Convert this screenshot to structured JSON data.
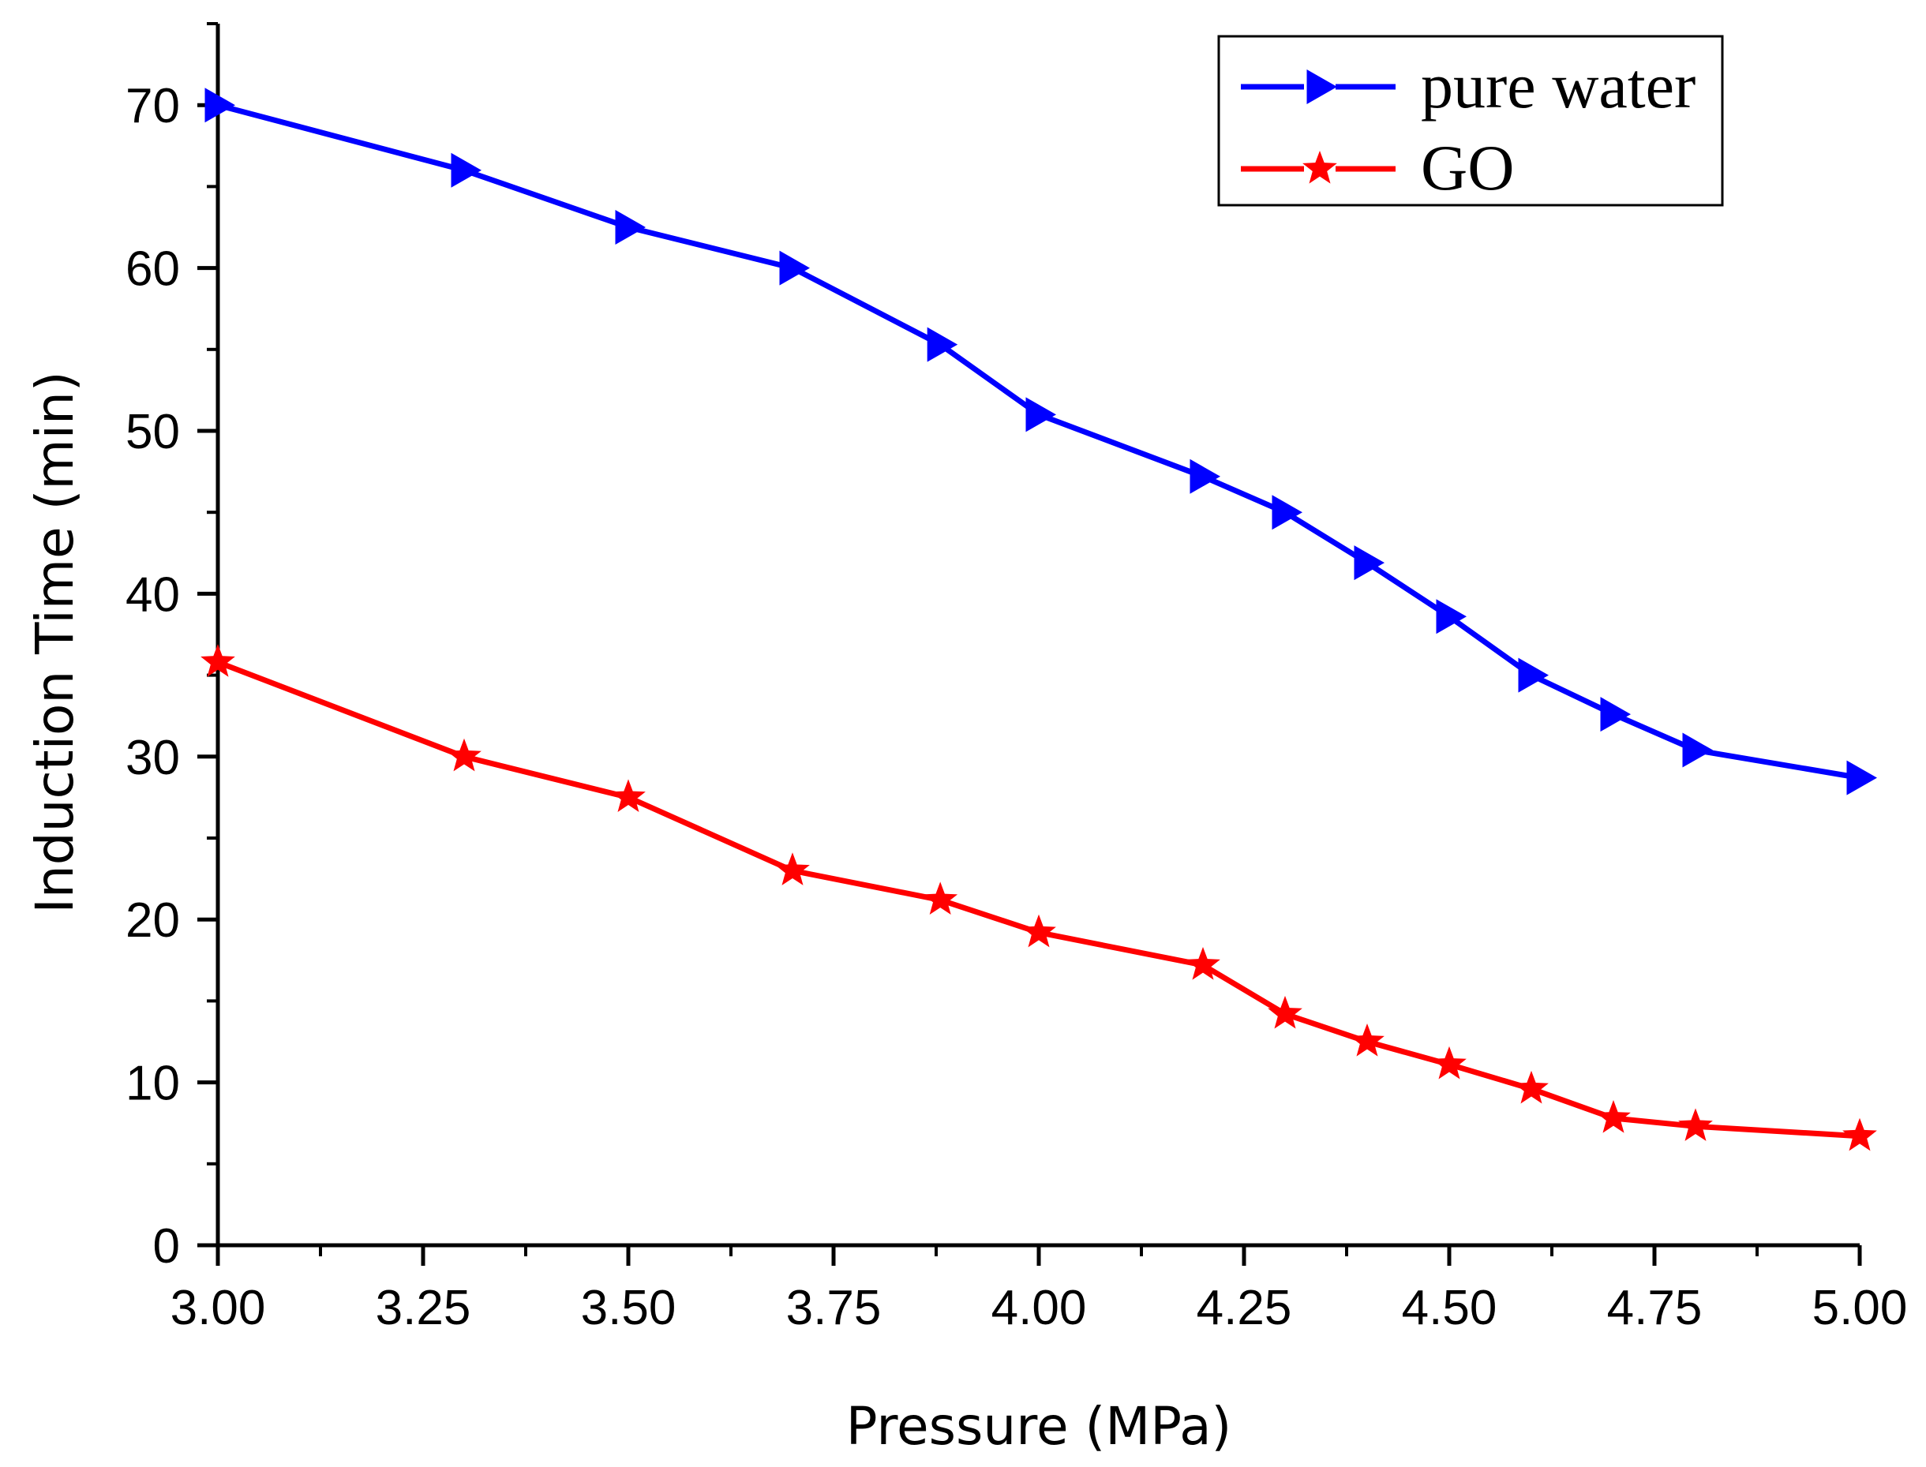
{
  "chart_data": {
    "type": "line",
    "title": "",
    "xlabel": "Pressure (MPa)",
    "ylabel": "Induction Time (min)",
    "xlim": [
      3.0,
      5.0
    ],
    "ylim": [
      0,
      75
    ],
    "x_ticks": [
      "3.00",
      "3.25",
      "3.50",
      "3.75",
      "4.00",
      "4.25",
      "4.50",
      "4.75",
      "5.00"
    ],
    "y_ticks": [
      "0",
      "10",
      "20",
      "30",
      "40",
      "50",
      "60",
      "70"
    ],
    "legend_position": "top-right",
    "series": [
      {
        "name": "pure water",
        "color": "#0000ff",
        "marker": "right-triangle",
        "x": [
          3.0,
          3.3,
          3.5,
          3.7,
          3.88,
          4.0,
          4.2,
          4.3,
          4.4,
          4.5,
          4.6,
          4.7,
          4.8,
          5.0
        ],
        "y": [
          70,
          66,
          62.5,
          60,
          55.3,
          51,
          47.2,
          45,
          41.9,
          38.6,
          35,
          32.6,
          30.4,
          28.7
        ]
      },
      {
        "name": "GO",
        "color": "#ff0000",
        "marker": "star",
        "x": [
          3.0,
          3.3,
          3.5,
          3.7,
          3.88,
          4.0,
          4.2,
          4.3,
          4.4,
          4.5,
          4.6,
          4.7,
          4.8,
          5.0
        ],
        "y": [
          35.8,
          30,
          27.5,
          23,
          21.2,
          19.2,
          17.2,
          14.2,
          12.5,
          11.1,
          9.6,
          7.8,
          7.3,
          6.7
        ]
      }
    ]
  }
}
